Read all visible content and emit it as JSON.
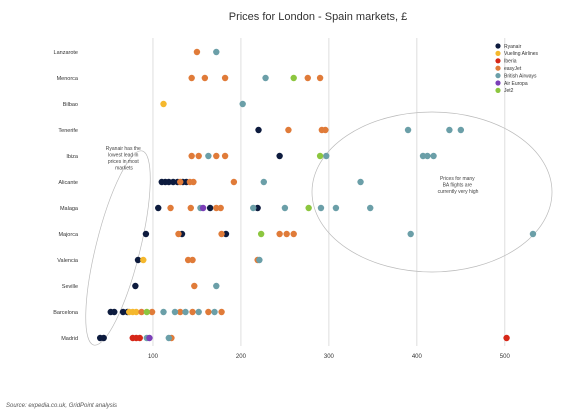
{
  "chart_data": {
    "type": "scatter",
    "title": "Prices for London - Spain markets, £",
    "xlabel": "",
    "ylabel": "",
    "xlim": [
      0,
      540
    ],
    "x_ticks": [
      "100",
      "200",
      "300",
      "400",
      "500"
    ],
    "x_tick_values": [
      100,
      200,
      300,
      400,
      500
    ],
    "grid": "vertical",
    "legend_position": "top-right",
    "categories": [
      "Lanzarote",
      "Menorca",
      "Bilbao",
      "Tenerife",
      "Ibiza",
      "Alicante",
      "Malaga",
      "Majorca",
      "Valencia",
      "Seville",
      "Barcelona",
      "Madrid"
    ],
    "series": [
      {
        "name": "Ryanair",
        "color": "#0d1b3e",
        "points": [
          {
            "cat": "Tenerife",
            "x": 220
          },
          {
            "cat": "Ibiza",
            "x": 244
          },
          {
            "cat": "Alicante",
            "x": 110
          },
          {
            "cat": "Alicante",
            "x": 114
          },
          {
            "cat": "Alicante",
            "x": 118
          },
          {
            "cat": "Alicante",
            "x": 123
          },
          {
            "cat": "Alicante",
            "x": 128
          },
          {
            "cat": "Alicante",
            "x": 134
          },
          {
            "cat": "Alicante",
            "x": 138
          },
          {
            "cat": "Malaga",
            "x": 106
          },
          {
            "cat": "Malaga",
            "x": 165
          },
          {
            "cat": "Malaga",
            "x": 219
          },
          {
            "cat": "Majorca",
            "x": 92
          },
          {
            "cat": "Majorca",
            "x": 133
          },
          {
            "cat": "Majorca",
            "x": 183
          },
          {
            "cat": "Valencia",
            "x": 83
          },
          {
            "cat": "Seville",
            "x": 80
          },
          {
            "cat": "Barcelona",
            "x": 52
          },
          {
            "cat": "Barcelona",
            "x": 56
          },
          {
            "cat": "Barcelona",
            "x": 66
          },
          {
            "cat": "Barcelona",
            "x": 71
          },
          {
            "cat": "Madrid",
            "x": 40
          },
          {
            "cat": "Madrid",
            "x": 44
          }
        ]
      },
      {
        "name": "Vueling Airlines",
        "color": "#f5b82e",
        "points": [
          {
            "cat": "Bilbao",
            "x": 112
          },
          {
            "cat": "Valencia",
            "x": 89
          },
          {
            "cat": "Barcelona",
            "x": 73
          },
          {
            "cat": "Barcelona",
            "x": 77
          },
          {
            "cat": "Barcelona",
            "x": 81
          }
        ]
      },
      {
        "name": "Iberia",
        "color": "#d62718",
        "points": [
          {
            "cat": "Madrid",
            "x": 77
          },
          {
            "cat": "Madrid",
            "x": 81
          },
          {
            "cat": "Madrid",
            "x": 85
          },
          {
            "cat": "Madrid",
            "x": 502
          }
        ]
      },
      {
        "name": "easyJet",
        "color": "#e07b39",
        "points": [
          {
            "cat": "Lanzarote",
            "x": 150
          },
          {
            "cat": "Menorca",
            "x": 144
          },
          {
            "cat": "Menorca",
            "x": 159
          },
          {
            "cat": "Menorca",
            "x": 182
          },
          {
            "cat": "Menorca",
            "x": 276
          },
          {
            "cat": "Menorca",
            "x": 290
          },
          {
            "cat": "Tenerife",
            "x": 254
          },
          {
            "cat": "Tenerife",
            "x": 292
          },
          {
            "cat": "Tenerife",
            "x": 296
          },
          {
            "cat": "Ibiza",
            "x": 144
          },
          {
            "cat": "Ibiza",
            "x": 152
          },
          {
            "cat": "Ibiza",
            "x": 172
          },
          {
            "cat": "Ibiza",
            "x": 182
          },
          {
            "cat": "Alicante",
            "x": 131
          },
          {
            "cat": "Alicante",
            "x": 142
          },
          {
            "cat": "Alicante",
            "x": 146
          },
          {
            "cat": "Alicante",
            "x": 192
          },
          {
            "cat": "Malaga",
            "x": 120
          },
          {
            "cat": "Malaga",
            "x": 143
          },
          {
            "cat": "Malaga",
            "x": 172
          },
          {
            "cat": "Malaga",
            "x": 177
          },
          {
            "cat": "Majorca",
            "x": 129
          },
          {
            "cat": "Majorca",
            "x": 178
          },
          {
            "cat": "Majorca",
            "x": 244
          },
          {
            "cat": "Majorca",
            "x": 252
          },
          {
            "cat": "Majorca",
            "x": 260
          },
          {
            "cat": "Valencia",
            "x": 140
          },
          {
            "cat": "Valencia",
            "x": 145
          },
          {
            "cat": "Valencia",
            "x": 219
          },
          {
            "cat": "Seville",
            "x": 147
          },
          {
            "cat": "Barcelona",
            "x": 87
          },
          {
            "cat": "Barcelona",
            "x": 99
          },
          {
            "cat": "Barcelona",
            "x": 131
          },
          {
            "cat": "Barcelona",
            "x": 145
          },
          {
            "cat": "Barcelona",
            "x": 163
          },
          {
            "cat": "Barcelona",
            "x": 178
          },
          {
            "cat": "Madrid",
            "x": 121
          }
        ]
      },
      {
        "name": "British Airways",
        "color": "#6b9fa8",
        "points": [
          {
            "cat": "Lanzarote",
            "x": 172
          },
          {
            "cat": "Menorca",
            "x": 228
          },
          {
            "cat": "Bilbao",
            "x": 202
          },
          {
            "cat": "Tenerife",
            "x": 390
          },
          {
            "cat": "Tenerife",
            "x": 437
          },
          {
            "cat": "Tenerife",
            "x": 450
          },
          {
            "cat": "Ibiza",
            "x": 163
          },
          {
            "cat": "Ibiza",
            "x": 297
          },
          {
            "cat": "Ibiza",
            "x": 407
          },
          {
            "cat": "Ibiza",
            "x": 412
          },
          {
            "cat": "Ibiza",
            "x": 419
          },
          {
            "cat": "Alicante",
            "x": 226
          },
          {
            "cat": "Alicante",
            "x": 336
          },
          {
            "cat": "Malaga",
            "x": 154
          },
          {
            "cat": "Malaga",
            "x": 214
          },
          {
            "cat": "Malaga",
            "x": 250
          },
          {
            "cat": "Malaga",
            "x": 291
          },
          {
            "cat": "Malaga",
            "x": 308
          },
          {
            "cat": "Malaga",
            "x": 347
          },
          {
            "cat": "Majorca",
            "x": 393
          },
          {
            "cat": "Majorca",
            "x": 532
          },
          {
            "cat": "Valencia",
            "x": 221
          },
          {
            "cat": "Seville",
            "x": 172
          },
          {
            "cat": "Barcelona",
            "x": 112
          },
          {
            "cat": "Barcelona",
            "x": 125
          },
          {
            "cat": "Barcelona",
            "x": 137
          },
          {
            "cat": "Barcelona",
            "x": 152
          },
          {
            "cat": "Barcelona",
            "x": 170
          },
          {
            "cat": "Madrid",
            "x": 93
          },
          {
            "cat": "Madrid",
            "x": 118
          }
        ]
      },
      {
        "name": "Air Europa",
        "color": "#7b3fb8",
        "points": [
          {
            "cat": "Malaga",
            "x": 157
          },
          {
            "cat": "Madrid",
            "x": 96
          }
        ]
      },
      {
        "name": "Jet2",
        "color": "#8cc63f",
        "points": [
          {
            "cat": "Menorca",
            "x": 260
          },
          {
            "cat": "Ibiza",
            "x": 290
          },
          {
            "cat": "Malaga",
            "x": 277
          },
          {
            "cat": "Majorca",
            "x": 223
          },
          {
            "cat": "Barcelona",
            "x": 93
          }
        ]
      }
    ],
    "annotations": [
      "Ryanair has the lowest lead in prices in most markets",
      "Prices for many BA flights are currently very high"
    ]
  },
  "source_note": "Source: expedia.co.uk, GridPoint analysis"
}
